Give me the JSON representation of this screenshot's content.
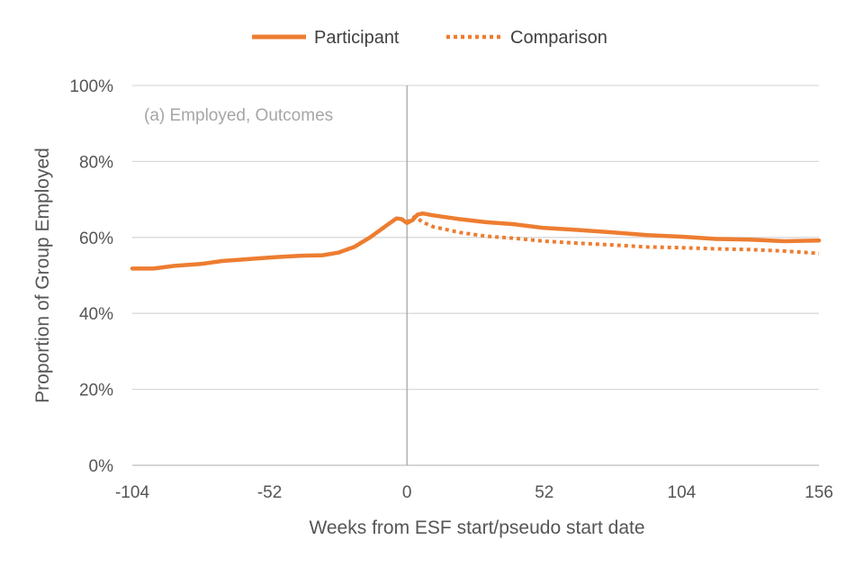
{
  "chart_data": {
    "type": "line",
    "annotation": "(a) Employed, Outcomes",
    "xlabel": "Weeks from ESF start/pseudo start date",
    "ylabel": "Proportion of Group Employed",
    "xlim": [
      -104,
      156
    ],
    "ylim": [
      0,
      100
    ],
    "x_ticks": [
      -104,
      -52,
      0,
      52,
      104,
      156
    ],
    "x_tick_labels": [
      "-104",
      "-52",
      "0",
      "52",
      "104",
      "156"
    ],
    "y_ticks": [
      0,
      20,
      40,
      60,
      80,
      100
    ],
    "y_tick_labels": [
      "0%",
      "20%",
      "40%",
      "60%",
      "80%",
      "100%"
    ],
    "grid": "horizontal",
    "reference_line_x": 0,
    "legend_position": "top",
    "series": [
      {
        "name": "Participant",
        "style": "solid",
        "color": "#ED7D31",
        "points": [
          [
            -104,
            51.8
          ],
          [
            -96,
            51.8
          ],
          [
            -88,
            52.5
          ],
          [
            -78,
            53.0
          ],
          [
            -70,
            53.8
          ],
          [
            -60,
            54.3
          ],
          [
            -50,
            54.8
          ],
          [
            -40,
            55.2
          ],
          [
            -32,
            55.3
          ],
          [
            -26,
            56.0
          ],
          [
            -20,
            57.5
          ],
          [
            -14,
            60.0
          ],
          [
            -8,
            63.0
          ],
          [
            -4,
            65.0
          ],
          [
            -2,
            64.8
          ],
          [
            0,
            63.8
          ],
          [
            2,
            64.5
          ],
          [
            4,
            66.0
          ],
          [
            6,
            66.3
          ],
          [
            10,
            65.8
          ],
          [
            20,
            64.8
          ],
          [
            30,
            64.0
          ],
          [
            40,
            63.5
          ],
          [
            52,
            62.5
          ],
          [
            64,
            62.0
          ],
          [
            78,
            61.3
          ],
          [
            91,
            60.6
          ],
          [
            104,
            60.2
          ],
          [
            117,
            59.6
          ],
          [
            130,
            59.4
          ],
          [
            143,
            59.0
          ],
          [
            156,
            59.2
          ]
        ]
      },
      {
        "name": "Comparison",
        "style": "dotted",
        "color": "#ED7D31",
        "points": [
          [
            0,
            64.0
          ],
          [
            3,
            65.5
          ],
          [
            6,
            64.0
          ],
          [
            10,
            62.8
          ],
          [
            20,
            61.3
          ],
          [
            30,
            60.3
          ],
          [
            40,
            59.8
          ],
          [
            52,
            59.0
          ],
          [
            64,
            58.5
          ],
          [
            78,
            58.0
          ],
          [
            91,
            57.5
          ],
          [
            104,
            57.3
          ],
          [
            117,
            57.0
          ],
          [
            130,
            56.8
          ],
          [
            143,
            56.4
          ],
          [
            156,
            55.8
          ]
        ]
      }
    ]
  }
}
